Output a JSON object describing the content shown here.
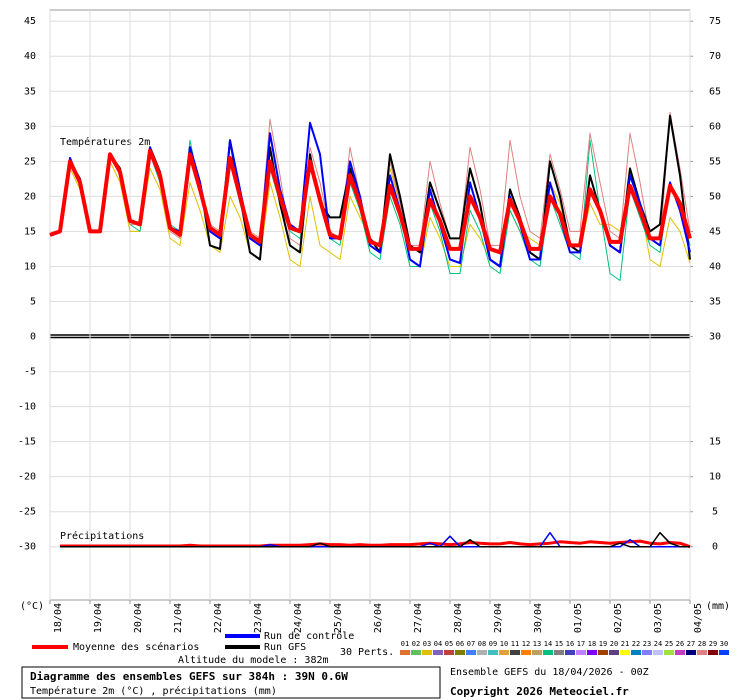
{
  "chart_data": {
    "type": "line",
    "title": "Diagramme des ensembles GEFS sur 384h : 39N 0.6W",
    "subtitle": "Température 2m (°C) , précipitations (mm)",
    "run_label": "Ensemble GEFS du 18/04/2026 - 00Z",
    "copyright": "Copyright 2026 Meteociel.fr",
    "altitude": "Altitude du modele : 382m",
    "temp_label": "Températures 2m",
    "precip_label": "Précipitations",
    "ylabel": "(°C)",
    "y2label": "(mm)",
    "grid": true,
    "xlim": [
      0,
      384
    ],
    "ylim": [
      -37.6,
      46.6
    ],
    "y2lim": [
      -7.6,
      76.6
    ],
    "yticks": [
      45,
      40,
      35,
      30,
      25,
      20,
      15,
      10,
      5,
      0,
      -5,
      -10,
      -15,
      -20,
      -25,
      -30
    ],
    "y2ticks": [
      75,
      70,
      65,
      60,
      55,
      50,
      45,
      40,
      35,
      30,
      15,
      10,
      5,
      0
    ],
    "xticks": [
      {
        "value": 0,
        "label": "18/04"
      },
      {
        "value": 24,
        "label": "19/04"
      },
      {
        "value": 48,
        "label": "20/04"
      },
      {
        "value": 72,
        "label": "21/04"
      },
      {
        "value": 96,
        "label": "22/04"
      },
      {
        "value": 120,
        "label": "23/04"
      },
      {
        "value": 144,
        "label": "24/04"
      },
      {
        "value": 168,
        "label": "25/04"
      },
      {
        "value": 192,
        "label": "26/04"
      },
      {
        "value": 216,
        "label": "27/04"
      },
      {
        "value": 240,
        "label": "28/04"
      },
      {
        "value": 264,
        "label": "29/04"
      },
      {
        "value": 288,
        "label": "30/04"
      },
      {
        "value": 312,
        "label": "01/05"
      },
      {
        "value": 336,
        "label": "02/05"
      },
      {
        "value": 360,
        "label": "03/05"
      },
      {
        "value": 384,
        "label": "04/05"
      }
    ],
    "x": [
      0,
      6,
      12,
      18,
      24,
      30,
      36,
      42,
      48,
      54,
      60,
      66,
      72,
      78,
      84,
      90,
      96,
      102,
      108,
      114,
      120,
      126,
      132,
      138,
      144,
      150,
      156,
      162,
      168,
      174,
      180,
      186,
      192,
      198,
      204,
      210,
      216,
      222,
      228,
      234,
      240,
      246,
      252,
      258,
      264,
      270,
      276,
      282,
      288,
      294,
      300,
      306,
      312,
      318,
      324,
      330,
      336,
      342,
      348,
      354,
      360,
      366,
      372,
      378,
      384
    ],
    "series": [
      {
        "name": "Moyenne des scénarios",
        "color": "#ff0000",
        "values": [
          14.5,
          15,
          25,
          22,
          15,
          15,
          26,
          23.5,
          16.5,
          16,
          26.5,
          23,
          15.5,
          14.5,
          26,
          21,
          15.5,
          14.5,
          25.5,
          20,
          14.5,
          13.5,
          25,
          20,
          15.5,
          15,
          25,
          19.5,
          14.5,
          14,
          23,
          19,
          13.5,
          13,
          21.5,
          17.5,
          12.5,
          12.5,
          19.5,
          16.5,
          12.5,
          12.5,
          20,
          17,
          12.5,
          12,
          19.5,
          16.5,
          12.5,
          12.5,
          20,
          17.5,
          13,
          13,
          21,
          18,
          13.5,
          13.5,
          21.5,
          18,
          14,
          14,
          21.5,
          19,
          14
        ]
      },
      {
        "name": "Run de contrôle",
        "color": "#0000ff",
        "values": [
          14.5,
          15,
          25.5,
          22,
          15,
          15,
          26,
          23.5,
          16.5,
          16,
          27,
          23,
          15.5,
          15,
          27,
          22,
          15,
          14,
          28,
          21,
          14,
          13,
          29,
          21,
          16,
          15,
          30.5,
          26,
          14,
          14,
          25,
          20,
          13,
          12,
          23,
          18,
          11,
          10,
          21,
          16,
          11,
          10.5,
          22,
          17,
          11,
          10,
          20,
          16,
          11,
          11,
          22,
          17,
          12,
          12,
          21,
          18,
          13,
          12,
          23,
          19,
          14,
          13,
          22,
          18,
          12
        ]
      },
      {
        "name": "Run GFS",
        "color": "#000000",
        "values": [
          14.5,
          15,
          25,
          22.5,
          15,
          15,
          26,
          24,
          16.5,
          16,
          27,
          23.5,
          15.5,
          14.5,
          27,
          22,
          13,
          12.5,
          28,
          20,
          12,
          11,
          27,
          19,
          13,
          12,
          26,
          19,
          17,
          17,
          24,
          19,
          14,
          12,
          26,
          20,
          13,
          12,
          22,
          18,
          14,
          14,
          24,
          19,
          11,
          10,
          21,
          17,
          12,
          11,
          25,
          20,
          13,
          12,
          23,
          18,
          13,
          12,
          24,
          19,
          15,
          16,
          31.5,
          23,
          11
        ]
      }
    ],
    "precip_series": [
      {
        "color": "#ff0000",
        "axis": "y2",
        "values": [
          null,
          0.1,
          0.1,
          0.1,
          0.1,
          0.1,
          0.1,
          0.1,
          0.1,
          0.1,
          0.1,
          0.1,
          0.1,
          0.1,
          0.2,
          0.1,
          0.1,
          0.1,
          0.1,
          0.1,
          0.1,
          0.1,
          0.2,
          0.2,
          0.2,
          0.2,
          0.3,
          0.4,
          0.3,
          0.3,
          0.2,
          0.3,
          0.2,
          0.2,
          0.3,
          0.3,
          0.3,
          0.4,
          0.5,
          0.4,
          0.3,
          0.4,
          0.6,
          0.5,
          0.4,
          0.4,
          0.6,
          0.4,
          0.3,
          0.4,
          0.5,
          0.7,
          0.6,
          0.5,
          0.7,
          0.6,
          0.5,
          0.6,
          0.7,
          0.8,
          0.5,
          0.4,
          0.6,
          0.5,
          0
        ]
      },
      {
        "color": "#0000ff",
        "axis": "y2",
        "values": [
          null,
          0,
          0,
          0,
          0,
          0,
          0,
          0,
          0,
          0,
          0,
          0,
          0,
          0,
          0,
          0,
          0,
          0,
          0,
          0,
          0,
          0,
          0.3,
          0,
          0,
          0,
          0,
          0,
          0,
          0,
          0,
          0,
          0,
          0,
          0,
          0,
          0,
          0,
          0.5,
          0,
          1.5,
          0,
          0,
          0,
          0,
          0,
          0,
          0,
          0,
          0,
          2,
          0,
          0,
          0,
          0,
          0,
          0,
          0,
          1,
          0,
          0,
          0,
          0,
          0,
          0
        ]
      },
      {
        "color": "#000000",
        "axis": "y2",
        "values": [
          null,
          0,
          0,
          0,
          0,
          0,
          0,
          0,
          0,
          0,
          0,
          0,
          0,
          0,
          0,
          0,
          0,
          0,
          0,
          0,
          0,
          0,
          0,
          0,
          0,
          0,
          0,
          0.5,
          0,
          0,
          0,
          0,
          0,
          0,
          0,
          0,
          0,
          0,
          0,
          0,
          0,
          0,
          1,
          0,
          0,
          0,
          0,
          0,
          0,
          0,
          0,
          0,
          0,
          0,
          0,
          0,
          0,
          0.5,
          0,
          0,
          0,
          2,
          0.5,
          0,
          0
        ]
      }
    ],
    "perturbations": {
      "label": "30 Perts.",
      "members": [
        {
          "name": "01",
          "color": "#e07030"
        },
        {
          "name": "02",
          "color": "#60c060"
        },
        {
          "name": "03",
          "color": "#e0c000",
          "values": [
            14.5,
            15,
            24,
            21,
            15,
            15,
            25,
            22,
            15,
            15,
            24,
            21,
            14,
            13,
            22,
            18,
            13,
            12,
            20,
            17,
            12,
            11,
            22,
            17,
            11,
            10,
            20,
            13,
            12,
            11,
            20,
            17,
            14,
            13,
            24,
            19,
            11,
            10,
            17,
            14,
            10,
            10,
            16,
            14,
            11,
            10,
            18,
            15,
            14,
            13,
            22,
            19,
            13,
            12,
            19,
            16,
            16,
            15,
            21,
            19,
            11,
            10,
            17,
            15,
            10.5
          ]
        },
        {
          "name": "04",
          "color": "#8060c0"
        },
        {
          "name": "05",
          "color": "#c04040"
        },
        {
          "name": "06",
          "color": "#808000"
        },
        {
          "name": "07",
          "color": "#4080ff"
        },
        {
          "name": "08",
          "color": "#b0b0b0"
        },
        {
          "name": "09",
          "color": "#40c0c0"
        },
        {
          "name": "10",
          "color": "#e0a040"
        },
        {
          "name": "11",
          "color": "#404040"
        },
        {
          "name": "12",
          "color": "#ff8000"
        },
        {
          "name": "13",
          "color": "#c0a060"
        },
        {
          "name": "14",
          "color": "#00c080",
          "values": [
            14.5,
            15,
            25,
            22,
            15,
            15,
            26,
            23,
            16,
            15,
            26,
            22,
            16,
            15,
            28,
            21,
            15,
            14,
            25,
            19,
            14,
            13,
            24,
            19,
            15,
            14,
            24,
            20,
            14,
            13,
            22,
            18,
            12,
            11,
            20,
            16,
            10,
            10,
            19,
            15,
            9,
            9,
            18,
            15,
            10,
            9,
            18,
            15,
            11,
            10,
            20,
            16,
            12,
            11,
            28,
            18,
            9,
            8,
            21,
            17,
            13,
            12,
            22,
            18,
            13
          ]
        },
        {
          "name": "15",
          "color": "#808080"
        },
        {
          "name": "16",
          "color": "#4040c0"
        },
        {
          "name": "17",
          "color": "#c080ff"
        },
        {
          "name": "18",
          "color": "#8000ff"
        },
        {
          "name": "19",
          "color": "#a04000"
        },
        {
          "name": "20",
          "color": "#604080"
        },
        {
          "name": "21",
          "color": "#ffff00"
        },
        {
          "name": "22",
          "color": "#0080c0"
        },
        {
          "name": "23",
          "color": "#8080ff"
        },
        {
          "name": "24",
          "color": "#c0c0ff"
        },
        {
          "name": "25",
          "color": "#a0e040"
        },
        {
          "name": "26",
          "color": "#c040c0"
        },
        {
          "name": "27",
          "color": "#000080"
        },
        {
          "name": "28",
          "color": "#e08080",
          "values": [
            14.5,
            15,
            25,
            22,
            15,
            15,
            26,
            23,
            16,
            16,
            26,
            23,
            15,
            14,
            26,
            21,
            16,
            15,
            28,
            21,
            15,
            14,
            31,
            23,
            14,
            13,
            27,
            22,
            15,
            14,
            27,
            20,
            14,
            13,
            25,
            19,
            13,
            13,
            25,
            19,
            14,
            14,
            27,
            21,
            13,
            13,
            28,
            20,
            15,
            14,
            26,
            21,
            15,
            15,
            29,
            22,
            15,
            14,
            29,
            22,
            14,
            13,
            32,
            24,
            15
          ]
        },
        {
          "name": "29",
          "color": "#800000"
        },
        {
          "name": "30",
          "color": "#0040ff"
        }
      ]
    }
  }
}
